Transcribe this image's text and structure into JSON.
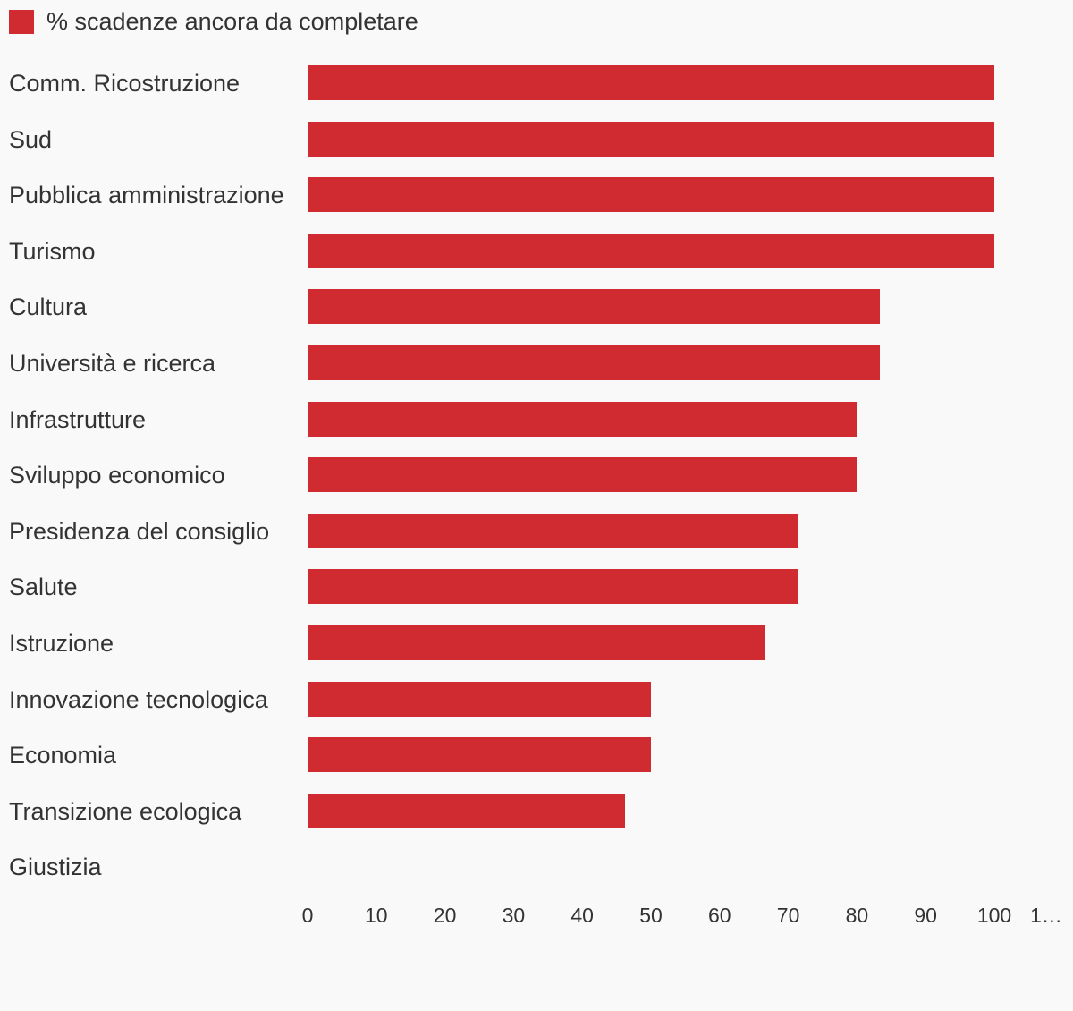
{
  "chart_data": {
    "type": "bar",
    "orientation": "horizontal",
    "legend": {
      "position": "top-left"
    },
    "series": [
      {
        "name": "% scadenze ancora da completare",
        "color": "#cf2b31"
      }
    ],
    "categories": [
      "Comm. Ricostruzione",
      "Sud",
      "Pubblica amministrazione",
      "Turismo",
      "Cultura",
      "Università e ricerca",
      "Infrastrutture",
      "Sviluppo economico",
      "Presidenza del consiglio",
      "Salute",
      "Istruzione",
      "Innovazione tecnologica",
      "Economia",
      "Transizione ecologica",
      "Giustizia"
    ],
    "values": [
      100,
      100,
      100,
      100,
      83.3,
      83.3,
      80,
      80,
      71.4,
      71.4,
      66.7,
      50,
      50,
      46.2,
      0
    ],
    "xlim": [
      0,
      110
    ],
    "x_ticks": [
      "0",
      "10",
      "20",
      "30",
      "40",
      "50",
      "60",
      "70",
      "80",
      "90",
      "100",
      "1…"
    ],
    "grid": false
  }
}
